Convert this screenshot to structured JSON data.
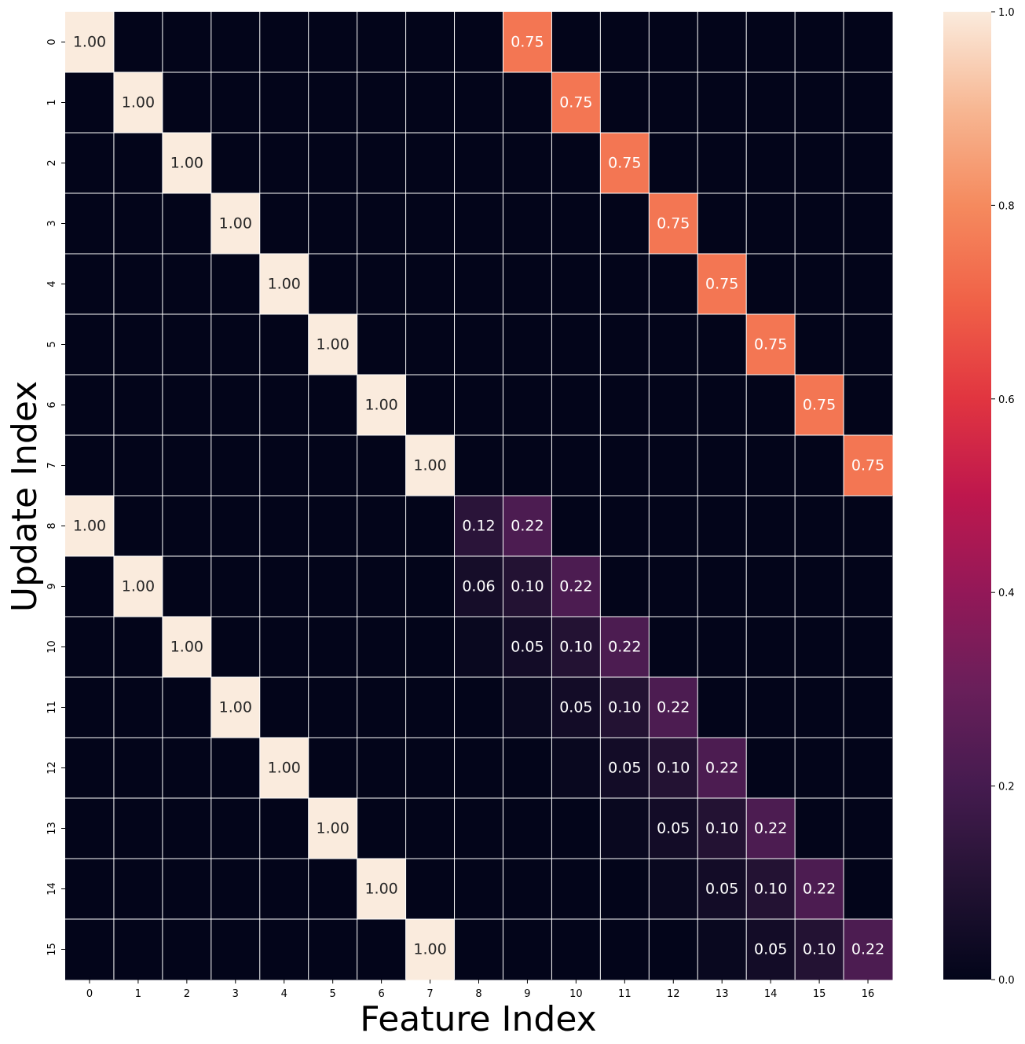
{
  "chart_data": {
    "type": "heatmap",
    "xlabel": "Feature Index",
    "ylabel": "Update Index",
    "x_categories": [
      "0",
      "1",
      "2",
      "3",
      "4",
      "5",
      "6",
      "7",
      "8",
      "9",
      "10",
      "11",
      "12",
      "13",
      "14",
      "15",
      "16"
    ],
    "y_categories": [
      "0",
      "1",
      "2",
      "3",
      "4",
      "5",
      "6",
      "7",
      "8",
      "9",
      "10",
      "11",
      "12",
      "13",
      "14",
      "15"
    ],
    "values": [
      [
        1,
        0,
        0,
        0,
        0,
        0,
        0,
        0,
        0,
        0.75,
        0,
        0,
        0,
        0,
        0,
        0,
        0
      ],
      [
        0,
        1,
        0,
        0,
        0,
        0,
        0,
        0,
        0,
        0,
        0.75,
        0,
        0,
        0,
        0,
        0,
        0
      ],
      [
        0,
        0,
        1,
        0,
        0,
        0,
        0,
        0,
        0,
        0,
        0,
        0.75,
        0,
        0,
        0,
        0,
        0
      ],
      [
        0,
        0,
        0,
        1,
        0,
        0,
        0,
        0,
        0,
        0,
        0,
        0,
        0.75,
        0,
        0,
        0,
        0
      ],
      [
        0,
        0,
        0,
        0,
        1,
        0,
        0,
        0,
        0,
        0,
        0,
        0,
        0,
        0.75,
        0,
        0,
        0
      ],
      [
        0,
        0,
        0,
        0,
        0,
        1,
        0,
        0,
        0,
        0,
        0,
        0,
        0,
        0,
        0.75,
        0,
        0
      ],
      [
        0,
        0,
        0,
        0,
        0,
        0,
        1,
        0,
        0,
        0,
        0,
        0,
        0,
        0,
        0,
        0.75,
        0
      ],
      [
        0,
        0,
        0,
        0,
        0,
        0,
        0,
        1,
        0,
        0,
        0,
        0,
        0,
        0,
        0,
        0,
        0.75
      ],
      [
        1,
        0,
        0,
        0,
        0,
        0,
        0,
        0,
        0.12,
        0.22,
        0,
        0,
        0,
        0,
        0,
        0,
        0
      ],
      [
        0,
        1,
        0,
        0,
        0,
        0,
        0,
        0,
        0.06,
        0.1,
        0.22,
        0,
        0,
        0,
        0,
        0,
        0
      ],
      [
        0,
        0,
        1,
        0,
        0,
        0,
        0,
        0,
        0.02,
        0.05,
        0.1,
        0.22,
        0,
        0,
        0,
        0,
        0
      ],
      [
        0,
        0,
        0,
        1,
        0,
        0,
        0,
        0,
        0,
        0.02,
        0.05,
        0.1,
        0.22,
        0,
        0,
        0,
        0
      ],
      [
        0,
        0,
        0,
        0,
        1,
        0,
        0,
        0,
        0,
        0,
        0.02,
        0.05,
        0.1,
        0.22,
        0,
        0,
        0
      ],
      [
        0,
        0,
        0,
        0,
        0,
        1,
        0,
        0,
        0,
        0,
        0,
        0.02,
        0.05,
        0.1,
        0.22,
        0,
        0
      ],
      [
        0,
        0,
        0,
        0,
        0,
        0,
        1,
        0,
        0,
        0,
        0,
        0,
        0.02,
        0.05,
        0.1,
        0.22,
        0
      ],
      [
        0,
        0,
        0,
        0,
        0,
        0,
        0,
        1,
        0,
        0,
        0,
        0,
        0,
        0.02,
        0.05,
        0.1,
        0.22
      ]
    ],
    "annotation_threshold": 0.05,
    "annotation_format": "2 decimals",
    "colormap": "rocket",
    "vmin": 0,
    "vmax": 1,
    "colorbar_ticks": [
      "0.0",
      "0.2",
      "0.4",
      "0.6",
      "0.8",
      "1.0"
    ],
    "grid": "white lines between cells"
  }
}
